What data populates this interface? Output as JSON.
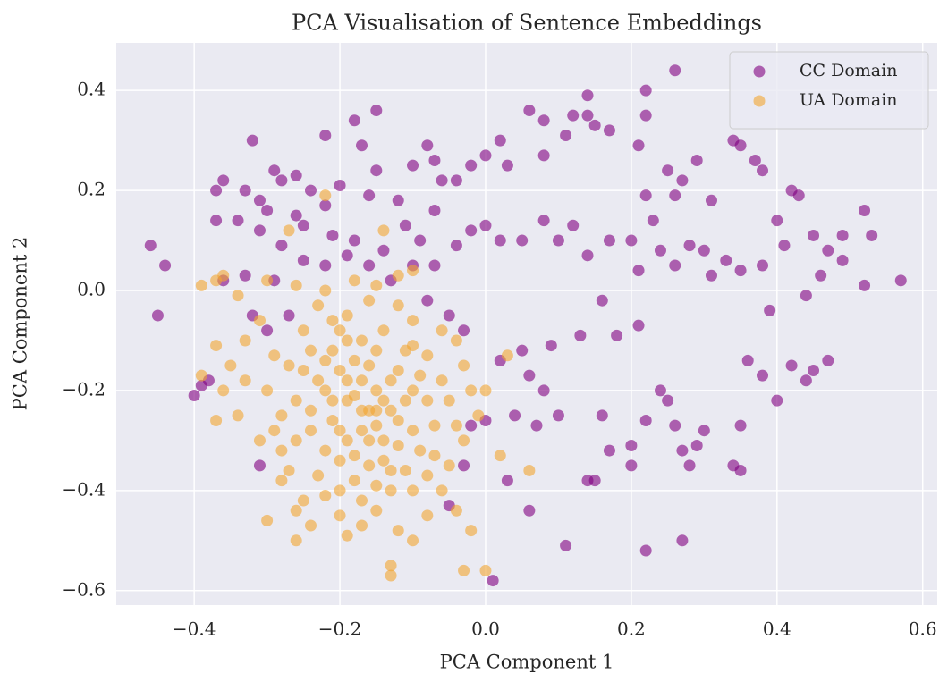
{
  "chart_data": {
    "type": "scatter",
    "title": "PCA Visualisation of Sentence Embeddings",
    "xlabel": "PCA Component 1",
    "ylabel": "PCA Component 2",
    "xlim": [
      -0.507,
      0.62
    ],
    "ylim": [
      -0.629,
      0.495
    ],
    "xticks": [
      {
        "value": -0.4,
        "label": "−0.4"
      },
      {
        "value": -0.2,
        "label": "−0.2"
      },
      {
        "value": 0,
        "label": "0.0"
      },
      0.2,
      0.4,
      0.6
    ],
    "yticks": [
      {
        "value": -0.6,
        "label": "−0.6"
      },
      {
        "value": -0.4,
        "label": "−0.4"
      },
      {
        "value": -0.2,
        "label": "−0.2"
      },
      {
        "value": 0,
        "label": "0.0"
      },
      0.2,
      0.4
    ],
    "grid": true,
    "legend": "upper right",
    "alpha": 0.6,
    "series": [
      {
        "name": "CC Domain",
        "color": "#800080",
        "x": [
          -0.46,
          -0.44,
          -0.45,
          -0.4,
          -0.39,
          -0.38,
          -0.37,
          -0.37,
          -0.36,
          -0.33,
          -0.32,
          -0.31,
          -0.29,
          -0.28,
          -0.26,
          -0.24,
          -0.22,
          -0.2,
          -0.18,
          -0.17,
          -0.15,
          -0.15,
          -0.12,
          -0.1,
          -0.08,
          -0.07,
          -0.06,
          -0.04,
          -0.02,
          0.0,
          0.02,
          0.03,
          0.06,
          0.08,
          0.08,
          0.11,
          0.12,
          0.14,
          0.14,
          0.15,
          0.17,
          0.21,
          0.22,
          0.22,
          0.26,
          0.25,
          0.27,
          0.29,
          0.31,
          0.34,
          0.35,
          0.37,
          0.38,
          0.4,
          0.42,
          0.43,
          0.45,
          0.47,
          0.49,
          0.52,
          0.53,
          0.57,
          0.52,
          0.49,
          0.46,
          0.44,
          0.47,
          0.45,
          0.44,
          0.42,
          0.4,
          0.38,
          0.36,
          0.35,
          0.34,
          0.35,
          0.3,
          0.29,
          0.27,
          0.28,
          0.26,
          0.24,
          0.25,
          0.22,
          0.2,
          0.2,
          0.17,
          0.16,
          0.15,
          0.14,
          0.11,
          0.06,
          0.03,
          0.04,
          0.07,
          0.1,
          0.08,
          0.13,
          0.16,
          0.18,
          0.21,
          0.21,
          0.24,
          0.26,
          0.28,
          0.3,
          0.31,
          0.33,
          0.35,
          0.38,
          0.39,
          0.41,
          0.22,
          0.27,
          0.01,
          0.02,
          0.05,
          0.08,
          0.1,
          0.12,
          0.14,
          0.17,
          0.2,
          0.22,
          0.23,
          0.26,
          0.02,
          0.05,
          0.06,
          0.09,
          -0.03,
          -0.05,
          -0.07,
          -0.04,
          -0.02,
          -0.09,
          -0.11,
          -0.14,
          -0.18,
          -0.21,
          -0.25,
          -0.28,
          -0.31,
          -0.34,
          -0.36,
          -0.33,
          -0.29,
          -0.25,
          -0.22,
          -0.19,
          -0.16,
          -0.13,
          -0.1,
          -0.08,
          -0.32,
          -0.3,
          -0.27,
          -0.31,
          -0.02,
          -0.05,
          -0.03,
          0.0,
          -0.22,
          -0.16,
          -0.07,
          0.0,
          -0.26,
          -0.3
        ],
        "values": [
          0.09,
          0.05,
          -0.05,
          -0.21,
          -0.19,
          -0.18,
          0.14,
          0.2,
          0.22,
          0.2,
          0.3,
          0.18,
          0.24,
          0.22,
          0.23,
          0.2,
          0.31,
          0.21,
          0.34,
          0.29,
          0.36,
          0.24,
          0.18,
          0.25,
          0.29,
          0.26,
          0.22,
          0.22,
          0.25,
          0.27,
          0.3,
          0.25,
          0.36,
          0.34,
          0.27,
          0.31,
          0.35,
          0.39,
          0.35,
          0.33,
          0.32,
          0.29,
          0.35,
          0.4,
          0.44,
          0.24,
          0.22,
          0.26,
          0.18,
          0.3,
          0.29,
          0.26,
          0.24,
          0.14,
          0.2,
          0.19,
          0.11,
          0.08,
          0.11,
          0.16,
          0.11,
          0.02,
          0.01,
          0.06,
          0.03,
          -0.01,
          -0.14,
          -0.16,
          -0.18,
          -0.15,
          -0.22,
          -0.17,
          -0.14,
          -0.27,
          -0.35,
          -0.36,
          -0.28,
          -0.31,
          -0.32,
          -0.35,
          -0.27,
          -0.2,
          -0.22,
          -0.26,
          -0.31,
          -0.35,
          -0.32,
          -0.25,
          -0.38,
          -0.38,
          -0.51,
          -0.44,
          -0.38,
          -0.25,
          -0.27,
          -0.25,
          -0.2,
          -0.09,
          -0.02,
          -0.09,
          0.04,
          -0.07,
          0.08,
          0.05,
          0.09,
          0.08,
          0.03,
          0.06,
          0.04,
          0.05,
          -0.04,
          0.09,
          -0.52,
          -0.5,
          -0.58,
          0.1,
          0.1,
          0.14,
          0.1,
          0.13,
          0.07,
          0.1,
          0.1,
          0.19,
          0.14,
          0.19,
          -0.14,
          -0.12,
          -0.17,
          -0.11,
          -0.08,
          -0.05,
          0.05,
          0.09,
          0.12,
          0.1,
          0.13,
          0.08,
          0.1,
          0.11,
          0.13,
          0.09,
          0.12,
          0.14,
          0.02,
          0.03,
          0.02,
          0.06,
          0.05,
          0.07,
          0.05,
          0.02,
          0.05,
          -0.02,
          -0.05,
          -0.08,
          -0.05,
          -0.35,
          -0.27,
          -0.43,
          -0.35,
          -0.26,
          0.17,
          0.19,
          0.16,
          0.13,
          0.15,
          0.16
        ]
      },
      {
        "name": "UA Domain",
        "color": "#f2a530",
        "x": [
          -0.39,
          -0.37,
          -0.36,
          -0.34,
          -0.3,
          -0.26,
          -0.22,
          -0.18,
          -0.15,
          -0.12,
          -0.1,
          -0.14,
          -0.22,
          -0.27,
          -0.37,
          -0.39,
          -0.36,
          -0.37,
          -0.34,
          -0.33,
          -0.31,
          -0.29,
          -0.3,
          -0.31,
          -0.28,
          -0.3,
          -0.27,
          -0.25,
          -0.23,
          -0.24,
          -0.26,
          -0.27,
          -0.25,
          -0.23,
          -0.21,
          -0.19,
          -0.2,
          -0.22,
          -0.18,
          -0.16,
          -0.14,
          -0.12,
          -0.1,
          -0.11,
          -0.13,
          -0.15,
          -0.17,
          -0.19,
          -0.21,
          -0.2,
          -0.18,
          -0.16,
          -0.14,
          -0.12,
          -0.1,
          -0.08,
          -0.06,
          -0.04,
          -0.03,
          -0.02,
          -0.05,
          -0.07,
          -0.09,
          -0.11,
          -0.13,
          -0.15,
          -0.17,
          -0.19,
          -0.2,
          -0.22,
          -0.24,
          -0.26,
          -0.12,
          -0.1,
          -0.08,
          -0.06,
          -0.05,
          -0.03,
          -0.04,
          -0.02,
          -0.03,
          -0.13,
          -0.13,
          0.0,
          0.0,
          0.02,
          0.06,
          0.03,
          -0.15,
          -0.17,
          -0.19,
          -0.21,
          -0.17,
          -0.15,
          -0.19,
          -0.16,
          -0.24,
          -0.28,
          -0.26,
          -0.14,
          -0.12,
          -0.1,
          -0.08,
          -0.06,
          -0.18,
          -0.16,
          -0.2,
          -0.22,
          -0.24,
          -0.22,
          -0.18,
          -0.16,
          -0.14,
          -0.12,
          -0.1,
          -0.2,
          -0.17,
          -0.15,
          -0.13,
          -0.19,
          -0.21,
          -0.23,
          -0.25,
          -0.17,
          -0.15,
          -0.13,
          -0.11,
          -0.09,
          -0.07,
          -0.2,
          -0.1,
          -0.08,
          -0.01,
          -0.04,
          -0.33,
          -0.35,
          -0.29,
          -0.28,
          -0.26
        ],
        "values": [
          0.01,
          0.02,
          0.03,
          -0.01,
          0.02,
          0.01,
          0.0,
          0.02,
          0.01,
          0.03,
          0.04,
          0.12,
          0.19,
          0.12,
          -0.11,
          -0.17,
          -0.2,
          -0.26,
          -0.25,
          -0.1,
          -0.06,
          -0.13,
          -0.2,
          -0.3,
          -0.32,
          -0.46,
          -0.36,
          -0.42,
          -0.37,
          -0.28,
          -0.22,
          -0.15,
          -0.08,
          -0.03,
          -0.06,
          -0.1,
          -0.16,
          -0.2,
          -0.21,
          -0.15,
          -0.08,
          -0.03,
          -0.06,
          -0.12,
          -0.18,
          -0.24,
          -0.28,
          -0.3,
          -0.26,
          -0.34,
          -0.38,
          -0.35,
          -0.3,
          -0.26,
          -0.2,
          -0.13,
          -0.08,
          -0.1,
          -0.15,
          -0.2,
          -0.22,
          -0.27,
          -0.32,
          -0.36,
          -0.4,
          -0.44,
          -0.47,
          -0.49,
          -0.45,
          -0.41,
          -0.47,
          -0.5,
          -0.48,
          -0.5,
          -0.45,
          -0.4,
          -0.35,
          -0.3,
          -0.44,
          -0.48,
          -0.56,
          -0.55,
          -0.57,
          -0.56,
          -0.2,
          -0.33,
          -0.36,
          -0.13,
          -0.2,
          -0.18,
          -0.22,
          -0.12,
          -0.1,
          -0.12,
          -0.05,
          -0.02,
          -0.12,
          -0.25,
          -0.3,
          -0.34,
          -0.31,
          -0.28,
          -0.22,
          -0.18,
          -0.33,
          -0.3,
          -0.28,
          -0.32,
          -0.24,
          -0.14,
          -0.14,
          -0.24,
          -0.22,
          -0.16,
          -0.11,
          -0.4,
          -0.42,
          -0.39,
          -0.36,
          -0.18,
          -0.22,
          -0.18,
          -0.16,
          -0.24,
          -0.27,
          -0.24,
          -0.22,
          -0.17,
          -0.33,
          -0.08,
          -0.4,
          -0.37,
          -0.25,
          -0.27,
          -0.18,
          -0.15,
          -0.28,
          -0.38,
          -0.44
        ]
      }
    ]
  }
}
